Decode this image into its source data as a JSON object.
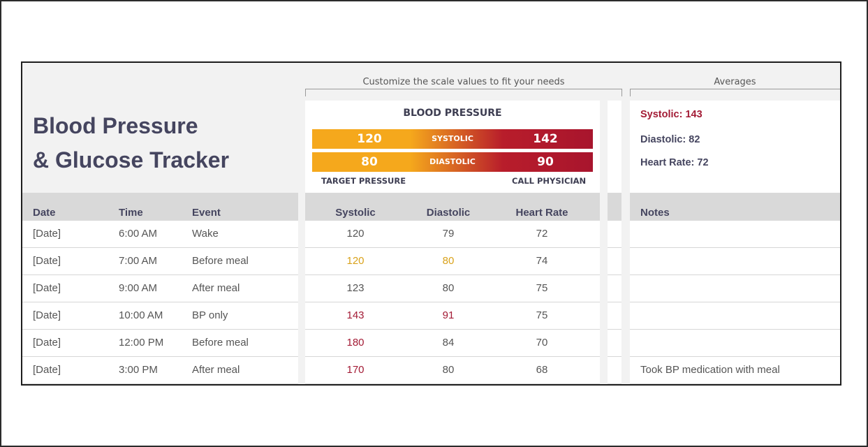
{
  "title_line1": "Blood Pressure",
  "title_line2": "& Glucose Tracker",
  "scale_caption": "Customize the scale values  to fit your needs",
  "averages_caption": "Averages",
  "scale": {
    "heading": "BLOOD PRESSURE",
    "systolic_label": "SYSTOLIC",
    "diastolic_label": "DIASTOLIC",
    "systolic_target": "120",
    "systolic_call": "142",
    "diastolic_target": "80",
    "diastolic_call": "90",
    "target_label": "TARGET PRESSURE",
    "call_label": "CALL PHYSICIAN"
  },
  "averages": {
    "systolic": "Systolic: 143",
    "diastolic": "Diastolic: 82",
    "heart_rate": "Heart Rate: 72"
  },
  "colors": {
    "target": "#f5a81c",
    "high": "#a8152d",
    "target_text": "#d9a21b",
    "high_text": "#a31b35",
    "text": "#555555",
    "heading": "#45455f"
  },
  "columns": [
    "Date",
    "Time",
    "Event",
    "Systolic",
    "Diastolic",
    "Heart Rate",
    "Notes"
  ],
  "rows": [
    {
      "date": "[Date]",
      "time": "6:00 AM",
      "event": "Wake",
      "systolic": "120",
      "diastolic": "79",
      "heart_rate": "72",
      "notes": "",
      "sys_flag": "normal",
      "dia_flag": "normal"
    },
    {
      "date": "[Date]",
      "time": "7:00 AM",
      "event": "Before meal",
      "systolic": "120",
      "diastolic": "80",
      "heart_rate": "74",
      "notes": "",
      "sys_flag": "target",
      "dia_flag": "target"
    },
    {
      "date": "[Date]",
      "time": "9:00 AM",
      "event": "After meal",
      "systolic": "123",
      "diastolic": "80",
      "heart_rate": "75",
      "notes": "",
      "sys_flag": "normal",
      "dia_flag": "normal"
    },
    {
      "date": "[Date]",
      "time": "10:00 AM",
      "event": "BP only",
      "systolic": "143",
      "diastolic": "91",
      "heart_rate": "75",
      "notes": "",
      "sys_flag": "high",
      "dia_flag": "high"
    },
    {
      "date": "[Date]",
      "time": "12:00 PM",
      "event": "Before meal",
      "systolic": "180",
      "diastolic": "84",
      "heart_rate": "70",
      "notes": "",
      "sys_flag": "high",
      "dia_flag": "normal"
    },
    {
      "date": "[Date]",
      "time": "3:00 PM",
      "event": "After meal",
      "systolic": "170",
      "diastolic": "80",
      "heart_rate": "68",
      "notes": "Took BP medication with meal",
      "sys_flag": "high",
      "dia_flag": "normal"
    }
  ]
}
